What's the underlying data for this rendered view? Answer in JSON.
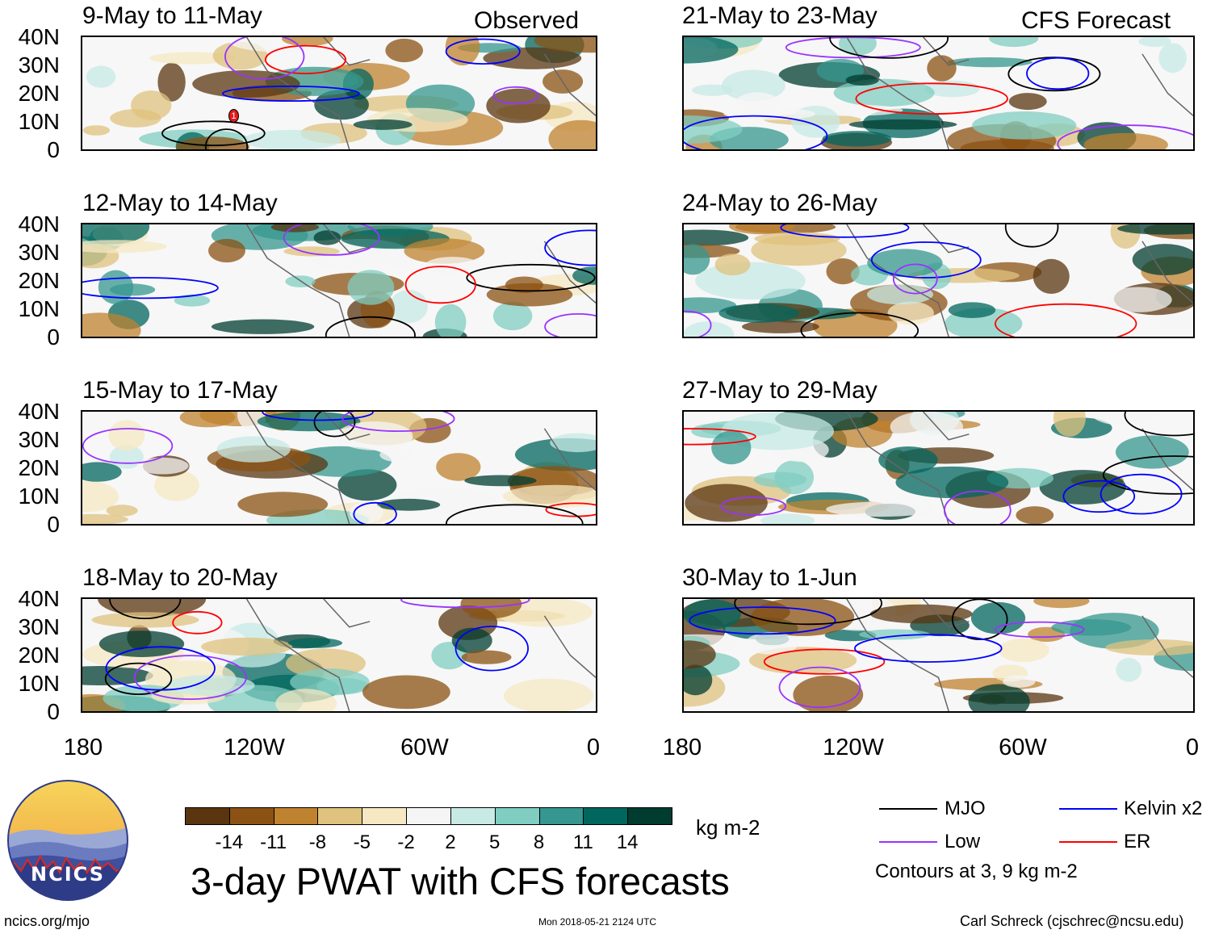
{
  "header": {
    "observed_label": "Observed",
    "forecast_label": "CFS Forecast"
  },
  "y_axis_labels": [
    "40N",
    "30N",
    "20N",
    "10N",
    "0"
  ],
  "x_axis_labels": [
    "180",
    "120W",
    "60W",
    "0"
  ],
  "panels": {
    "observed": [
      {
        "title": "9-May to 11-May"
      },
      {
        "title": "12-May to 14-May"
      },
      {
        "title": "15-May to 17-May"
      },
      {
        "title": "18-May to 20-May"
      }
    ],
    "forecast": [
      {
        "title": "21-May to 23-May"
      },
      {
        "title": "24-May to 26-May"
      },
      {
        "title": "27-May to 29-May"
      },
      {
        "title": "30-May to 1-Jun"
      }
    ]
  },
  "colorbar": {
    "colors": [
      "#5a3510",
      "#8b5213",
      "#bf822f",
      "#dfc27d",
      "#f6e8c3",
      "#f5f5f5",
      "#c7eae5",
      "#80cdc1",
      "#35978f",
      "#01665e",
      "#003c30"
    ],
    "tick_labels": [
      "-14",
      "-11",
      "-8",
      "-5",
      "-2",
      "2",
      "5",
      "8",
      "11",
      "14"
    ],
    "units": "kg m-2"
  },
  "legend": {
    "items": [
      {
        "label": "MJO",
        "color": "#000000"
      },
      {
        "label": "Kelvin x2",
        "color": "#0000ff"
      },
      {
        "label": "Low",
        "color": "#9933ff"
      },
      {
        "label": "ER",
        "color": "#ff0000"
      }
    ],
    "contour_note": "Contours at 3, 9 kg m-2"
  },
  "main_title": "3-day PWAT with CFS forecasts",
  "footer": {
    "website": "ncics.org/mjo",
    "timestamp": "Mon 2018-05-21 2124 UTC",
    "author": "Carl Schreck (cjschrec@ncsu.edu)"
  },
  "logo": {
    "text": "NCICS"
  },
  "storm_marker": {
    "label": "1"
  }
}
